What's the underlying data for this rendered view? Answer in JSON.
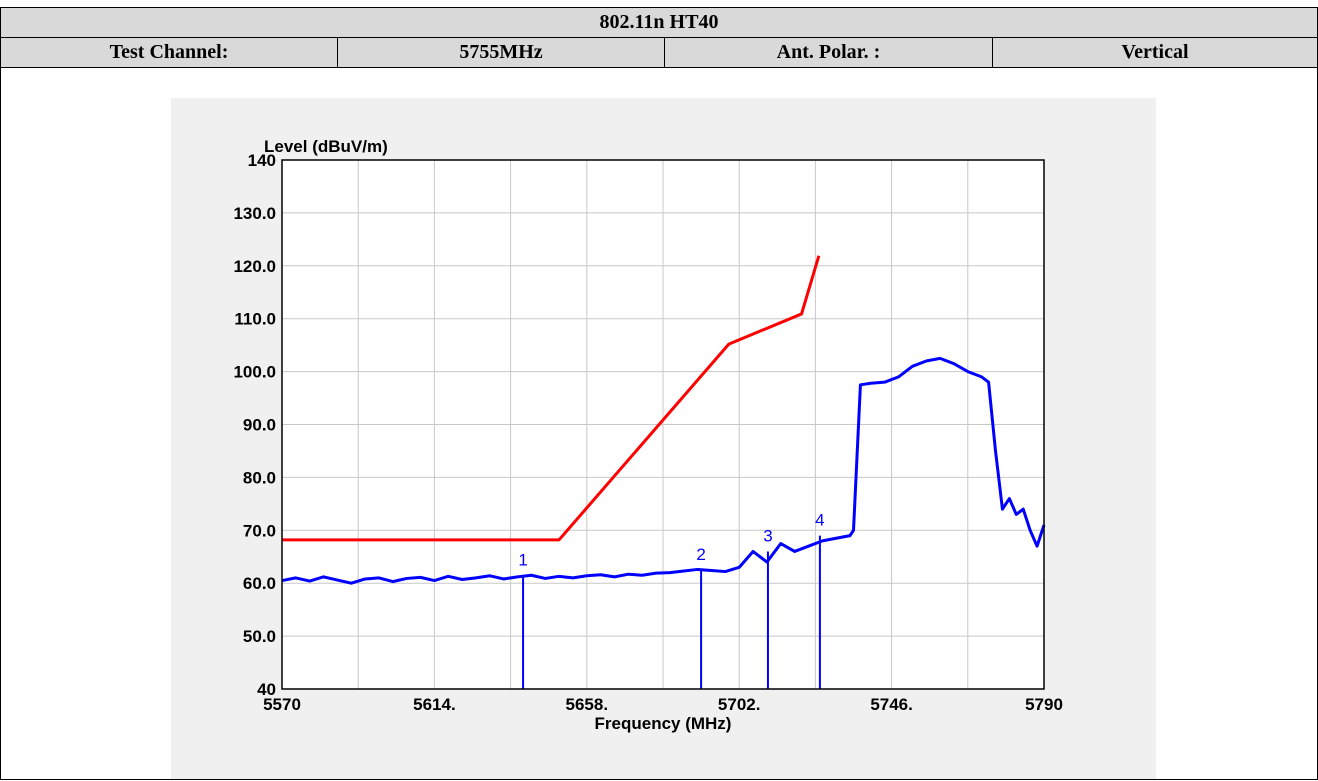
{
  "table": {
    "title": "802.11n HT40",
    "row": [
      "Test Channel:",
      "5755MHz",
      "Ant. Polar. :",
      "Vertical"
    ]
  },
  "chart_data": {
    "type": "line",
    "ylabel": "Level (dBuV/m)",
    "xlabel": "Frequency (MHz)",
    "xlim": [
      5570,
      5790
    ],
    "ylim": [
      40,
      140
    ],
    "xticks": [
      5570,
      {
        "value": 5614,
        "label": "5614."
      },
      {
        "value": 5658,
        "label": "5658."
      },
      {
        "value": 5702,
        "label": "5702."
      },
      {
        "value": 5746,
        "label": "5746."
      },
      5790
    ],
    "xgrid": [
      5592,
      5636,
      5680,
      5724,
      5768
    ],
    "yticks": [
      140,
      {
        "value": 130,
        "label": "130.0"
      },
      {
        "value": 120,
        "label": "120.0"
      },
      {
        "value": 110,
        "label": "110.0"
      },
      {
        "value": 100,
        "label": "100.0"
      },
      {
        "value": 90,
        "label": "90.0"
      },
      {
        "value": 80,
        "label": "80.0"
      },
      {
        "value": 70,
        "label": "70.0"
      },
      {
        "value": 60,
        "label": "60.0"
      },
      {
        "value": 50,
        "label": "50.0"
      },
      40
    ],
    "grid": true,
    "series": [
      {
        "color": "#ff0000",
        "x": [
          5570,
          5650,
          5699,
          5720,
          5725
        ],
        "values": [
          68.2,
          68.2,
          105.2,
          110.9,
          121.9
        ]
      },
      {
        "color": "#0000ff",
        "x": [
          5570,
          5574,
          5578,
          5582,
          5586,
          5590,
          5594,
          5598,
          5602,
          5606,
          5610,
          5614,
          5618,
          5622,
          5626,
          5630,
          5634,
          5638,
          5642,
          5646,
          5650,
          5654,
          5658,
          5662,
          5666,
          5670,
          5674,
          5678,
          5682,
          5686,
          5690,
          5694,
          5698,
          5702,
          5706,
          5710,
          5714,
          5718,
          5722,
          5726,
          5730,
          5734,
          5735,
          5737,
          5740,
          5744,
          5748,
          5752,
          5756,
          5760,
          5764,
          5768,
          5772,
          5774,
          5776,
          5778,
          5780,
          5782,
          5784,
          5786,
          5788,
          5790
        ],
        "values": [
          60.5,
          61,
          60.4,
          61.2,
          60.6,
          60,
          60.8,
          61,
          60.3,
          60.9,
          61.1,
          60.5,
          61.3,
          60.7,
          61,
          61.4,
          60.8,
          61.2,
          61.5,
          60.9,
          61.3,
          61,
          61.4,
          61.6,
          61.2,
          61.7,
          61.5,
          61.9,
          62,
          62.3,
          62.6,
          62.4,
          62.2,
          63,
          66,
          64,
          67.5,
          66,
          67,
          68,
          68.5,
          69,
          70,
          97.5,
          97.8,
          98,
          99,
          101,
          102,
          102.5,
          101.5,
          100,
          99,
          98,
          85,
          74,
          76,
          73,
          74,
          70,
          67,
          71
        ]
      }
    ],
    "markers": [
      {
        "label": "1",
        "x": 5639.6,
        "y": 61.5
      },
      {
        "label": "2",
        "x": 5691,
        "y": 62.5
      },
      {
        "label": "3",
        "x": 5710.3,
        "y": 66
      },
      {
        "label": "4",
        "x": 5725.3,
        "y": 69
      }
    ],
    "marker_color": "#0000ff"
  }
}
